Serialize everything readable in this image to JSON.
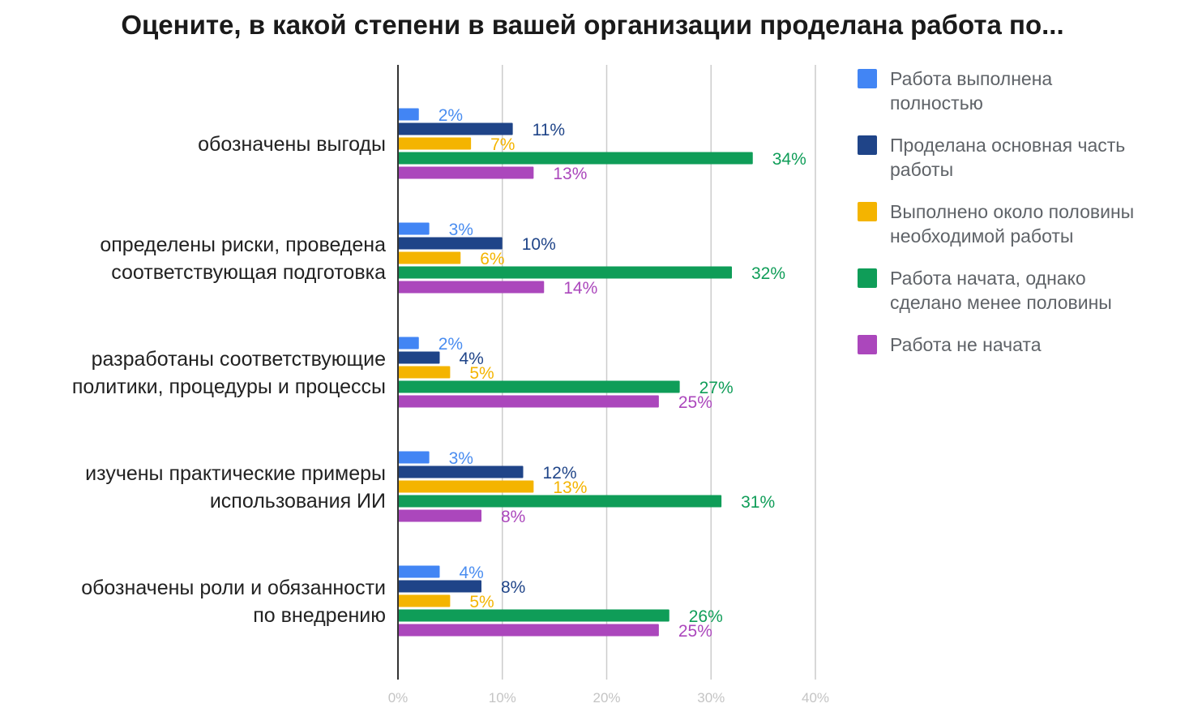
{
  "title": "Оцените, в какой степени в вашей организации проделана работа по...",
  "chart_data": {
    "type": "bar",
    "orientation": "horizontal",
    "title": "Оцените, в какой степени в вашей организации проделана работа по...",
    "categories": [
      [
        "обозначены выгоды"
      ],
      [
        "определены риски, проведена",
        "соответствующая подготовка"
      ],
      [
        "разработаны соответствующие",
        "политики, процедуры и процессы"
      ],
      [
        "изучены практические примеры",
        "использования ИИ"
      ],
      [
        "обозначены роли и обязанности",
        "по внедрению"
      ]
    ],
    "series": [
      {
        "name": "Работа выполнена полностью",
        "color": "#4285f4",
        "label_color": "#4a8df0",
        "values": [
          2,
          3,
          2,
          3,
          4
        ]
      },
      {
        "name": "Проделана основная часть работы",
        "color": "#1f4488",
        "label_color": "#1f4488",
        "values": [
          11,
          10,
          4,
          12,
          8
        ]
      },
      {
        "name": "Выполнено около половины необходимой работы",
        "color": "#f4b400",
        "label_color": "#f4b400",
        "values": [
          7,
          6,
          5,
          13,
          5
        ]
      },
      {
        "name": "Работа начата, однако сделано менее половины",
        "color": "#0f9d58",
        "label_color": "#0f9d58",
        "values": [
          34,
          32,
          27,
          31,
          26
        ]
      },
      {
        "name": "Работа не начата",
        "color": "#ab47bc",
        "label_color": "#ab47bc",
        "values": [
          13,
          14,
          25,
          8,
          25
        ]
      }
    ],
    "value_suffix": "%",
    "xlim": [
      0,
      40
    ],
    "xticks": [
      "0%",
      "10%",
      "20%",
      "30%",
      "40%"
    ],
    "grid": true,
    "legend": "right"
  }
}
